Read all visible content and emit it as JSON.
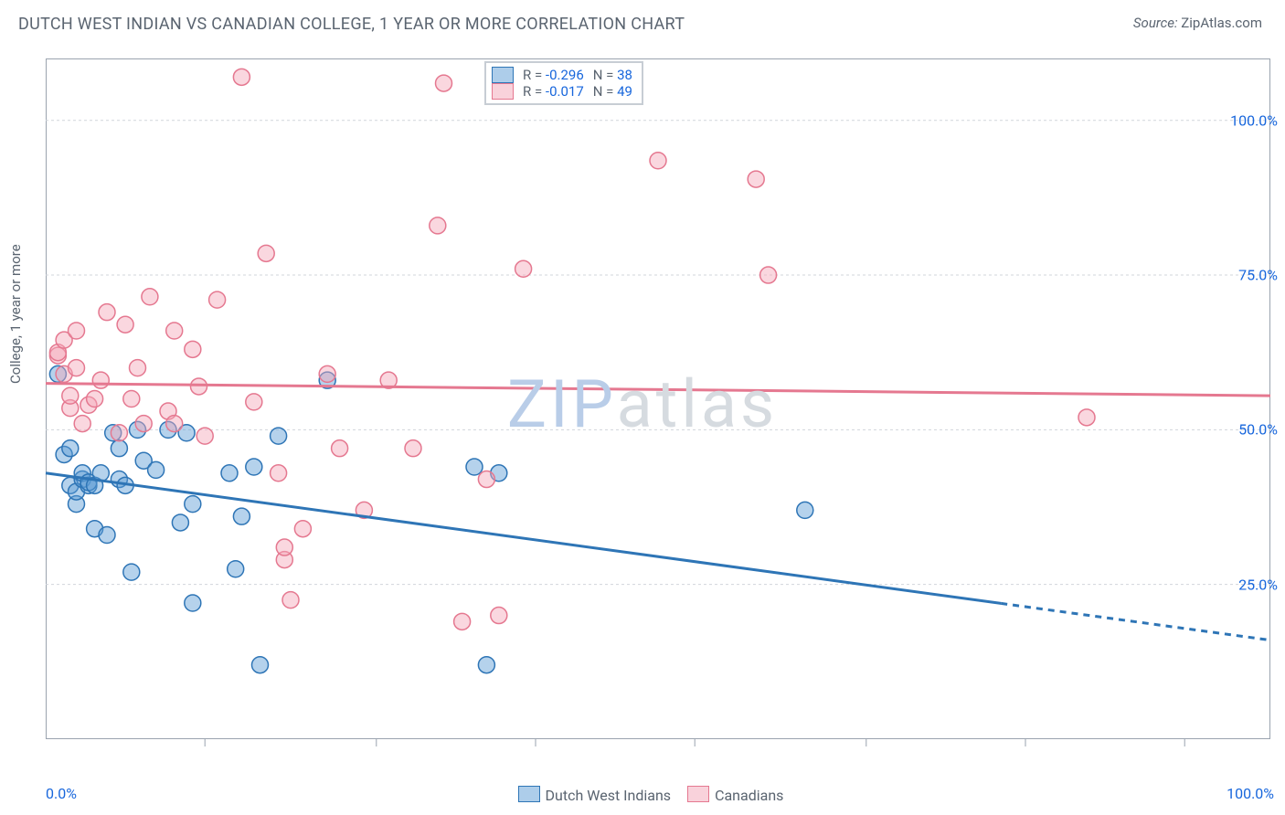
{
  "title": "DUTCH WEST INDIAN VS CANADIAN COLLEGE, 1 YEAR OR MORE CORRELATION CHART",
  "source_label": "Source:",
  "source_value": "ZipAtlas.com",
  "watermark_zip": "ZIP",
  "watermark_atlas": "atlas",
  "y_axis_label": "College, 1 year or more",
  "chart": {
    "type": "scatter",
    "xlim": [
      0,
      100
    ],
    "ylim": [
      0,
      110
    ],
    "y_ticks": [
      25,
      50,
      75,
      100
    ],
    "y_tick_labels": [
      "25.0%",
      "50.0%",
      "75.0%",
      "100.0%"
    ],
    "x_min_label": "0.0%",
    "x_max_label": "100.0%",
    "x_tick_positions": [
      13,
      27,
      40,
      53,
      67,
      80,
      93
    ],
    "background_color": "#ffffff",
    "grid_color": "#d1d5db",
    "border_color": "#9aa3af",
    "marker_radius": 9,
    "marker_fill_opacity": 0.45,
    "marker_stroke_width": 1.5,
    "series": [
      {
        "name": "Dutch West Indians",
        "fill_color": "#5b9bd5",
        "stroke_color": "#2e75b6",
        "regression": {
          "x0": 0,
          "y0": 43,
          "x1": 100,
          "y1": 16,
          "solid_until_x": 78
        },
        "points": [
          [
            1,
            59
          ],
          [
            1.5,
            46
          ],
          [
            2,
            41
          ],
          [
            2,
            47
          ],
          [
            2.5,
            38
          ],
          [
            2.5,
            40
          ],
          [
            3,
            42
          ],
          [
            3,
            43
          ],
          [
            3.5,
            41
          ],
          [
            3.5,
            41.5
          ],
          [
            4,
            34
          ],
          [
            4,
            41
          ],
          [
            4.5,
            43
          ],
          [
            5,
            33
          ],
          [
            5.5,
            49.5
          ],
          [
            6,
            47
          ],
          [
            6,
            42
          ],
          [
            6.5,
            41
          ],
          [
            7,
            27
          ],
          [
            7.5,
            50
          ],
          [
            8,
            45
          ],
          [
            9,
            43.5
          ],
          [
            10,
            50
          ],
          [
            11,
            35
          ],
          [
            11.5,
            49.5
          ],
          [
            12,
            22
          ],
          [
            12,
            38
          ],
          [
            15,
            43
          ],
          [
            15.5,
            27.5
          ],
          [
            16,
            36
          ],
          [
            17,
            44
          ],
          [
            17.5,
            12
          ],
          [
            19,
            49
          ],
          [
            23,
            58
          ],
          [
            35,
            44
          ],
          [
            37,
            43
          ],
          [
            36,
            12
          ],
          [
            62,
            37
          ]
        ]
      },
      {
        "name": "Canadians",
        "fill_color": "#f4a6b7",
        "stroke_color": "#e57890",
        "regression": {
          "x0": 0,
          "y0": 57.5,
          "x1": 100,
          "y1": 55.5,
          "solid_until_x": 100
        },
        "points": [
          [
            1,
            62
          ],
          [
            1,
            62.5
          ],
          [
            1.5,
            59
          ],
          [
            1.5,
            64.5
          ],
          [
            2,
            53.5
          ],
          [
            2,
            55.5
          ],
          [
            2.5,
            60
          ],
          [
            2.5,
            66
          ],
          [
            3,
            51
          ],
          [
            3.5,
            54
          ],
          [
            4,
            55
          ],
          [
            4.5,
            58
          ],
          [
            5,
            69
          ],
          [
            6,
            49.5
          ],
          [
            6.5,
            67
          ],
          [
            7,
            55
          ],
          [
            7.5,
            60
          ],
          [
            8,
            51
          ],
          [
            8.5,
            71.5
          ],
          [
            10,
            53
          ],
          [
            10.5,
            51
          ],
          [
            10.5,
            66
          ],
          [
            12,
            63
          ],
          [
            12.5,
            57
          ],
          [
            13,
            49
          ],
          [
            14,
            71
          ],
          [
            16,
            107
          ],
          [
            17,
            54.5
          ],
          [
            18,
            78.5
          ],
          [
            19,
            43
          ],
          [
            19.5,
            29
          ],
          [
            19.5,
            31
          ],
          [
            20,
            22.5
          ],
          [
            21,
            34
          ],
          [
            23,
            59
          ],
          [
            24,
            47
          ],
          [
            26,
            37
          ],
          [
            28,
            58
          ],
          [
            30,
            47
          ],
          [
            32,
            83
          ],
          [
            32.5,
            106
          ],
          [
            34,
            19
          ],
          [
            36,
            42
          ],
          [
            37,
            20
          ],
          [
            39,
            76
          ],
          [
            50,
            93.5
          ],
          [
            58,
            90.5
          ],
          [
            59,
            75
          ],
          [
            85,
            52
          ]
        ]
      }
    ]
  },
  "legend": {
    "stat_rows": [
      {
        "series_index": 0,
        "R": "-0.296",
        "N": "38"
      },
      {
        "series_index": 1,
        "R": "-0.017",
        "N": "49"
      }
    ]
  }
}
